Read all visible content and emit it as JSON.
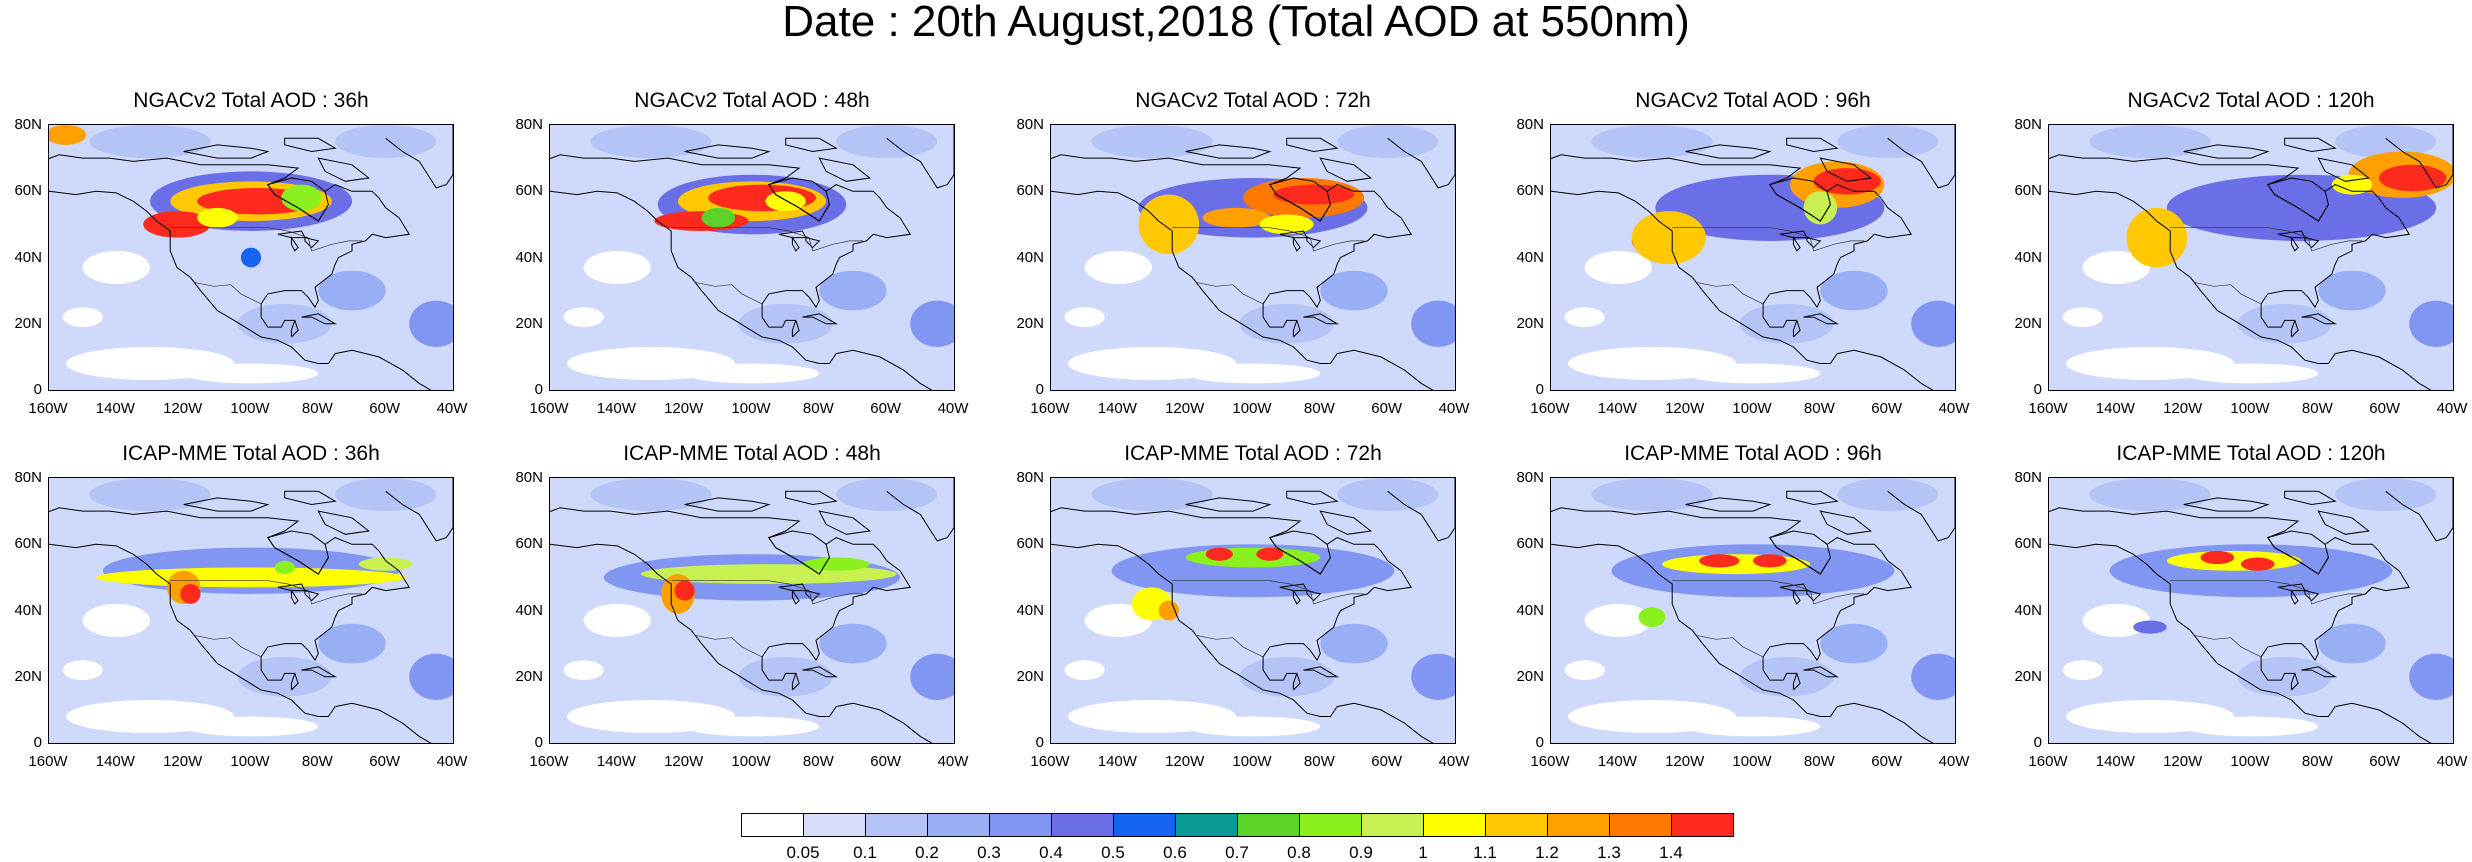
{
  "title": "Date : 20th August,2018 (Total AOD at 550nm)",
  "lat_ticks": [
    "80N",
    "60N",
    "40N",
    "20N",
    "0"
  ],
  "lon_ticks": [
    "160W",
    "140W",
    "120W",
    "100W",
    "80W",
    "60W",
    "40W"
  ],
  "panels": [
    {
      "title": "NGACv2 Total AOD : 36h",
      "model": "NGACv2",
      "lead": 36
    },
    {
      "title": "NGACv2 Total AOD : 48h",
      "model": "NGACv2",
      "lead": 48
    },
    {
      "title": "NGACv2 Total AOD : 72h",
      "model": "NGACv2",
      "lead": 72
    },
    {
      "title": "NGACv2 Total AOD : 96h",
      "model": "NGACv2",
      "lead": 96
    },
    {
      "title": "NGACv2 Total AOD : 120h",
      "model": "NGACv2",
      "lead": 120
    },
    {
      "title": "ICAP-MME Total AOD : 36h",
      "model": "ICAP-MME",
      "lead": 36
    },
    {
      "title": "ICAP-MME Total AOD : 48h",
      "model": "ICAP-MME",
      "lead": 48
    },
    {
      "title": "ICAP-MME Total AOD : 72h",
      "model": "ICAP-MME",
      "lead": 72
    },
    {
      "title": "ICAP-MME Total AOD : 96h",
      "model": "ICAP-MME",
      "lead": 96
    },
    {
      "title": "ICAP-MME Total AOD : 120h",
      "model": "ICAP-MME",
      "lead": 120
    }
  ],
  "colorbar": {
    "labels": [
      "0.05",
      "0.1",
      "0.2",
      "0.3",
      "0.4",
      "0.5",
      "0.6",
      "0.7",
      "0.8",
      "0.9",
      "1",
      "1.1",
      "1.2",
      "1.3",
      "1.4"
    ],
    "colors": [
      "#ffffff",
      "#d6def9",
      "#b4c4f6",
      "#98aef5",
      "#8196f2",
      "#6a6fe8",
      "#1464f0",
      "#0a9a96",
      "#5ad226",
      "#8af01e",
      "#c8f050",
      "#ffff00",
      "#ffc800",
      "#ffa000",
      "#ff7800",
      "#ff2a1e"
    ]
  }
}
